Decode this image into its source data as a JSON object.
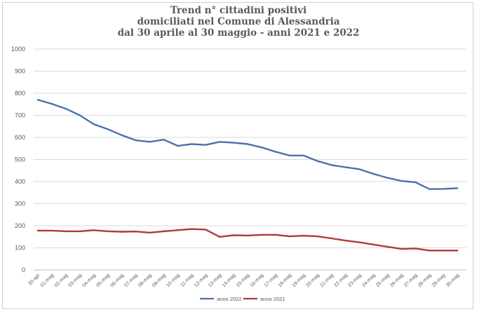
{
  "chart_data": {
    "type": "line",
    "title_lines": [
      "Trend n° cittadini positivi",
      "domiciliati nel Comune di Alessandria",
      "dal 30 aprile al 30 maggio - anni 2021 e 2022"
    ],
    "xlabel": "",
    "ylabel": "",
    "ylim": [
      0,
      1000
    ],
    "yticks": [
      0,
      100,
      200,
      300,
      400,
      500,
      600,
      700,
      800,
      900,
      1000
    ],
    "grid": true,
    "legend_position": "bottom",
    "categories": [
      "30-apr",
      "01-mag",
      "02-mag",
      "03-mag",
      "04-mag",
      "05-mag",
      "06-mag",
      "07-mag",
      "08-mag",
      "09-mag",
      "10-mag",
      "11-mag",
      "12-mag",
      "13-mag",
      "14-mag",
      "15-mag",
      "16-mag",
      "17-mag",
      "18-mag",
      "19-mag",
      "20-mag",
      "21-mag",
      "22-mag",
      "23-mag",
      "24-mag",
      "25-mag",
      "26-mag",
      "27-mag",
      "28-mag",
      "29-mag",
      "30-mag"
    ],
    "series": [
      {
        "name": "anno 2022",
        "color": "#4a72a8",
        "values": [
          770,
          752,
          730,
          700,
          660,
          637,
          610,
          587,
          580,
          590,
          562,
          570,
          566,
          580,
          576,
          570,
          555,
          535,
          518,
          518,
          493,
          475,
          465,
          456,
          435,
          417,
          403,
          397,
          366,
          367,
          370
        ]
      },
      {
        "name": "anno 2021",
        "color": "#b03a3a",
        "values": [
          178,
          178,
          175,
          175,
          180,
          175,
          173,
          174,
          169,
          175,
          180,
          185,
          183,
          150,
          157,
          156,
          159,
          159,
          152,
          155,
          152,
          143,
          133,
          125,
          115,
          105,
          95,
          97,
          88,
          88,
          88
        ]
      }
    ]
  }
}
